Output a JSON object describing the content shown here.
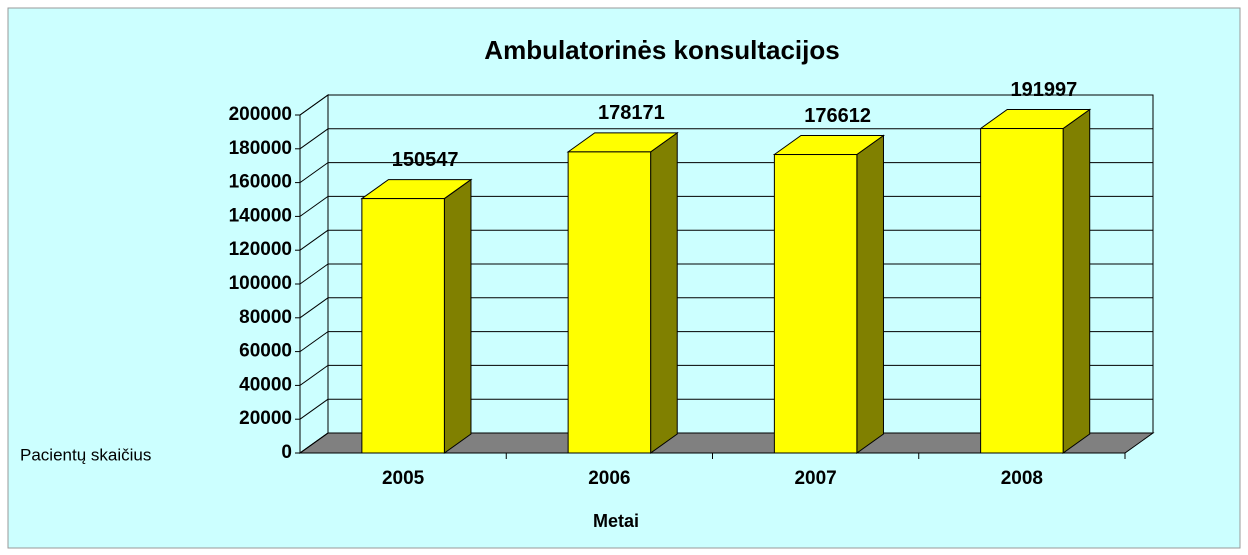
{
  "chart_data": {
    "type": "bar3d",
    "title": "Ambulatorinės konsultacijos",
    "categories": [
      "2005",
      "2006",
      "2007",
      "2008"
    ],
    "values": [
      150547,
      178171,
      176612,
      191997
    ],
    "color": "#ffff00",
    "side_color": "#808000",
    "floor_color": "#808080",
    "ylim": [
      0,
      200000
    ],
    "yticks": [
      0,
      20000,
      40000,
      60000,
      80000,
      100000,
      120000,
      140000,
      160000,
      180000,
      200000
    ],
    "grid": true,
    "xlabel": "Metai",
    "ylabel": "Pacientų skaičius"
  }
}
